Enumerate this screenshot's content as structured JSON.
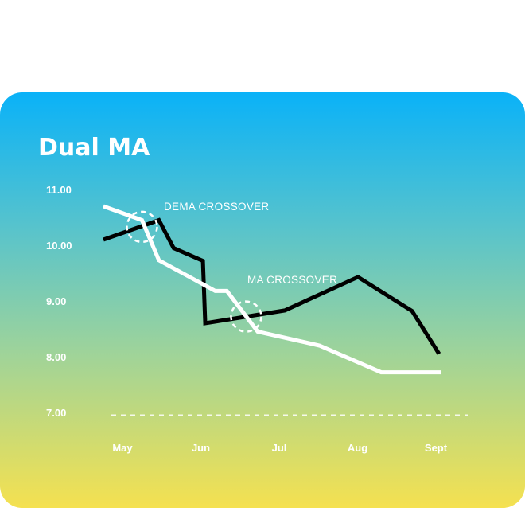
{
  "chart_data": {
    "type": "line",
    "title": "Dual MA",
    "categories": [
      "May",
      "Jun",
      "Jul",
      "Aug",
      "Sept"
    ],
    "x": [
      0.0,
      0.29,
      0.53,
      0.91,
      1.2,
      1.4,
      1.58,
      1.72,
      2.0,
      2.4,
      2.85,
      3.4,
      4.0,
      4.25
    ],
    "ylim": [
      7.0,
      11.0
    ],
    "yticks": [
      "7.00",
      "8.00",
      "9.00",
      "10.00",
      "11.00"
    ],
    "reference_line": {
      "value": 6.95,
      "style": "dashed"
    },
    "series": [
      {
        "color": "#000000",
        "points": [
          [
            0.0,
            10.1
          ],
          [
            0.72,
            10.45
          ],
          [
            0.91,
            9.95
          ],
          [
            1.29,
            9.72
          ],
          [
            1.32,
            8.6
          ],
          [
            2.35,
            8.83
          ],
          [
            3.3,
            9.43
          ],
          [
            4.0,
            8.82
          ],
          [
            4.35,
            8.05
          ]
        ]
      },
      {
        "color": "#ffffff",
        "points": [
          [
            0.0,
            10.7
          ],
          [
            0.5,
            10.45
          ],
          [
            0.72,
            9.73
          ],
          [
            1.45,
            9.18
          ],
          [
            1.6,
            9.18
          ],
          [
            2.0,
            8.45
          ],
          [
            2.8,
            8.2
          ],
          [
            3.6,
            7.72
          ],
          [
            4.38,
            7.72
          ]
        ]
      }
    ],
    "annotations": [
      {
        "text": "DEMA CROSSOVER",
        "at": [
          0.5,
          10.33
        ]
      },
      {
        "text": "MA CROSSOVER",
        "at": [
          1.85,
          8.72
        ]
      }
    ],
    "grid": false,
    "legend": "none"
  }
}
